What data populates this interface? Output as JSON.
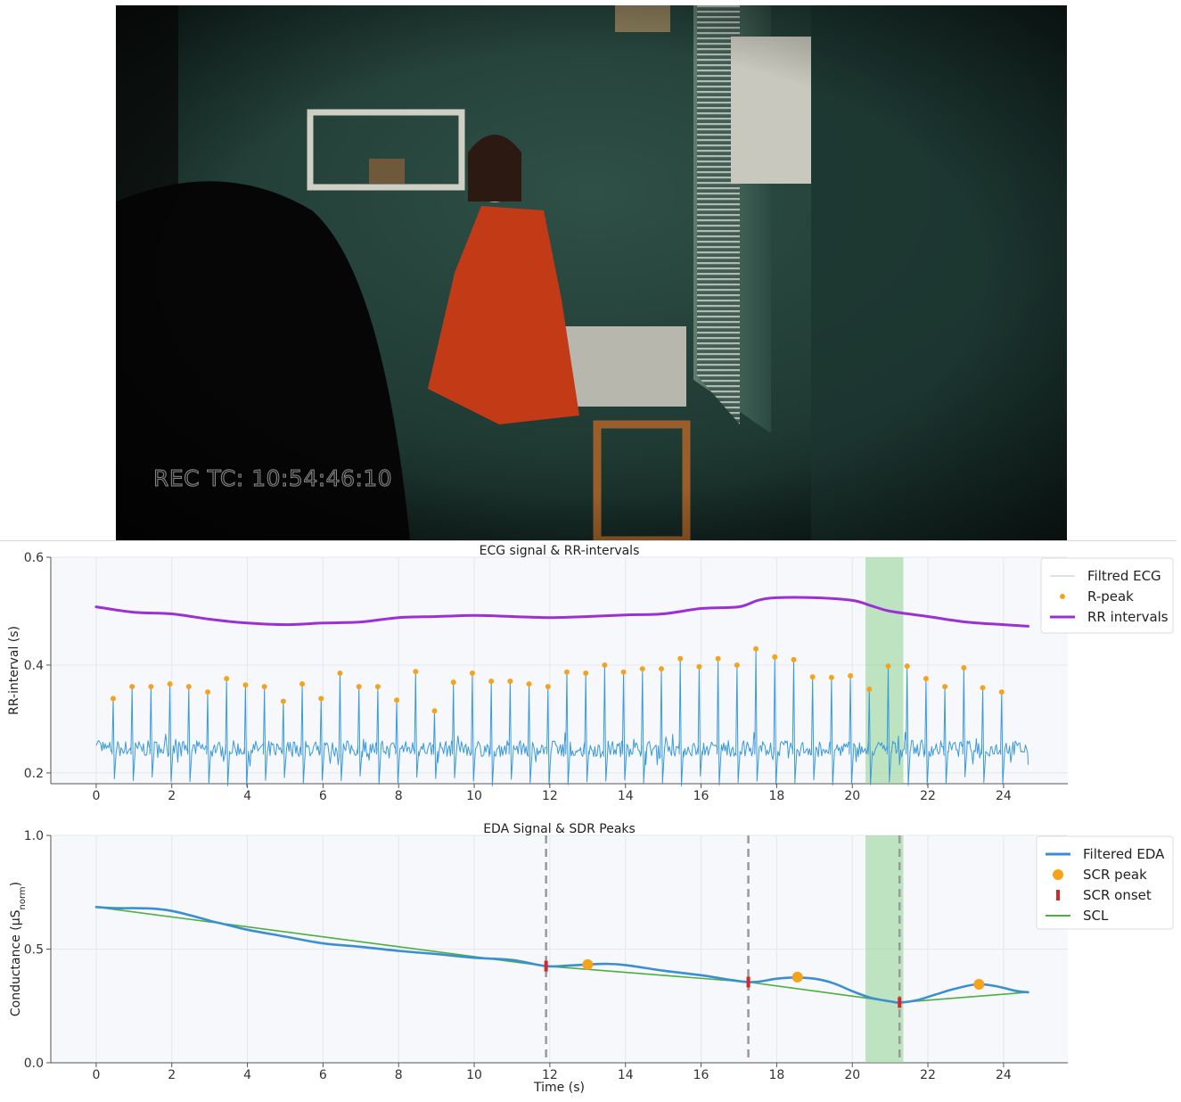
{
  "video": {
    "timecode": "REC TC: 10:54:46:10"
  },
  "colors": {
    "ecg": "#3a9ad9",
    "rpeak": "#f5a31a",
    "rr": "#9b30d6",
    "eda": "#3a8fd4",
    "scr_peak": "#f5a31a",
    "scr_onset": "#d62728",
    "scl": "#4caf3f",
    "highlight": "#8fd18f",
    "plot_bg": "#f6f8fb"
  },
  "chart_data": [
    {
      "type": "line",
      "title": "ECG signal & RR-intervals",
      "xlabel": "",
      "ylabel": "RR-interval (s)",
      "xlim": [
        -1.2,
        25.7
      ],
      "ylim": [
        0.18,
        0.6
      ],
      "x_ticks": [
        0,
        2,
        4,
        6,
        8,
        10,
        12,
        14,
        16,
        18,
        20,
        22,
        24
      ],
      "y_ticks": [
        0.2,
        0.4,
        0.6
      ],
      "y_tick_labels": [
        "0.2",
        "0.4",
        "0.6"
      ],
      "highlight": [
        20.35,
        21.35
      ],
      "legend": {
        "position": "top-right",
        "entries": [
          "Filtred ECG",
          "R-peak",
          "RR intervals"
        ]
      },
      "ecg": {
        "baseline": 0.245,
        "trough": 0.175,
        "x_end": 24.65
      },
      "r_peaks": {
        "x": [
          0.45,
          0.95,
          1.45,
          1.95,
          2.45,
          2.95,
          3.45,
          3.95,
          4.45,
          4.95,
          5.45,
          5.95,
          6.45,
          6.95,
          7.45,
          7.95,
          8.45,
          8.95,
          9.45,
          9.95,
          10.45,
          10.95,
          11.45,
          11.95,
          12.45,
          12.95,
          13.45,
          13.95,
          14.45,
          14.95,
          15.45,
          15.95,
          16.45,
          16.95,
          17.45,
          17.95,
          18.45,
          18.95,
          19.45,
          19.95,
          20.45,
          20.95,
          21.45,
          21.95,
          22.45,
          22.95,
          23.45,
          23.95
        ],
        "y": [
          0.338,
          0.36,
          0.36,
          0.365,
          0.36,
          0.35,
          0.375,
          0.363,
          0.36,
          0.333,
          0.365,
          0.338,
          0.385,
          0.36,
          0.36,
          0.335,
          0.388,
          0.315,
          0.368,
          0.385,
          0.37,
          0.37,
          0.365,
          0.36,
          0.387,
          0.385,
          0.4,
          0.387,
          0.393,
          0.393,
          0.412,
          0.397,
          0.412,
          0.4,
          0.43,
          0.415,
          0.41,
          0.378,
          0.377,
          0.38,
          0.355,
          0.398,
          0.398,
          0.375,
          0.36,
          0.395,
          0.358,
          0.35
        ]
      },
      "rr_intervals": {
        "x": [
          0,
          1,
          2,
          3,
          4,
          5,
          6,
          7,
          8,
          9,
          10,
          11,
          12,
          13,
          14,
          15,
          16,
          17,
          17.5,
          18,
          19,
          20,
          20.5,
          21,
          22,
          23,
          24,
          24.65
        ],
        "y": [
          0.508,
          0.498,
          0.495,
          0.485,
          0.478,
          0.475,
          0.478,
          0.48,
          0.488,
          0.49,
          0.492,
          0.49,
          0.488,
          0.49,
          0.493,
          0.495,
          0.505,
          0.508,
          0.52,
          0.525,
          0.525,
          0.52,
          0.51,
          0.5,
          0.49,
          0.48,
          0.475,
          0.472
        ]
      }
    },
    {
      "type": "line",
      "title": "EDA Signal & SDR Peaks",
      "xlabel": "Time (s)",
      "ylabel": "Conductance (μS",
      "ylabel_sub": "norm",
      "ylabel_end": ")",
      "xlim": [
        -1.2,
        25.7
      ],
      "ylim": [
        0.0,
        1.0
      ],
      "x_ticks": [
        0,
        2,
        4,
        6,
        8,
        10,
        12,
        14,
        16,
        18,
        20,
        22,
        24
      ],
      "y_ticks": [
        0.0,
        0.5,
        1.0
      ],
      "y_tick_labels": [
        "0.0",
        "0.5",
        "1.0"
      ],
      "highlight": [
        20.35,
        21.35
      ],
      "vlines": [
        11.9,
        17.25,
        21.25
      ],
      "legend": {
        "position": "top-right",
        "entries": [
          "Filtered EDA",
          "SCR peak",
          "SCR onset",
          "SCL"
        ]
      },
      "filtered_eda": {
        "x": [
          0,
          0.5,
          1,
          1.5,
          2,
          2.5,
          3,
          3.5,
          4,
          5,
          6,
          7,
          8,
          9,
          10,
          11,
          11.9,
          12.5,
          13,
          13.5,
          14,
          15,
          16,
          17.25,
          18,
          18.5,
          19,
          19.5,
          20,
          20.5,
          21,
          21.25,
          21.7,
          22.2,
          22.7,
          23.3,
          23.8,
          24.3,
          24.65
        ],
        "y": [
          0.685,
          0.68,
          0.68,
          0.678,
          0.668,
          0.648,
          0.625,
          0.605,
          0.585,
          0.555,
          0.525,
          0.51,
          0.492,
          0.478,
          0.462,
          0.452,
          0.425,
          0.428,
          0.432,
          0.435,
          0.43,
          0.405,
          0.385,
          0.355,
          0.37,
          0.375,
          0.37,
          0.35,
          0.315,
          0.285,
          0.27,
          0.265,
          0.275,
          0.3,
          0.325,
          0.345,
          0.337,
          0.317,
          0.31
        ]
      },
      "scr_peaks": {
        "x": [
          13.0,
          18.55,
          23.35
        ],
        "y": [
          0.432,
          0.377,
          0.345
        ]
      },
      "scr_onsets": {
        "x": [
          11.9,
          17.25,
          21.25
        ],
        "y": [
          0.425,
          0.355,
          0.265
        ]
      },
      "scl": {
        "x": [
          0,
          11.9,
          17.25,
          21.25,
          24.65
        ],
        "y": [
          0.685,
          0.425,
          0.355,
          0.265,
          0.31
        ]
      }
    }
  ]
}
